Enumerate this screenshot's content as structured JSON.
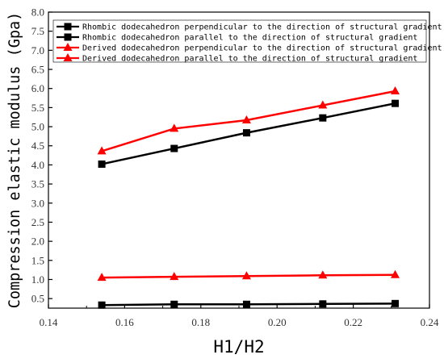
{
  "chart_data": {
    "type": "line",
    "xlabel": "H1/H2",
    "ylabel": "Compression elastic modulus (Gpa)",
    "xlim": [
      0.14,
      0.24
    ],
    "ylim": [
      0.25,
      8.0
    ],
    "x_ticks": [
      "0.14",
      "0.16",
      "0.18",
      "0.20",
      "0.22",
      "0.24"
    ],
    "y_ticks": [
      "0.5",
      "1.0",
      "1.5",
      "2.0",
      "2.5",
      "3.0",
      "3.5",
      "4.0",
      "4.5",
      "5.0",
      "5.5",
      "6.0",
      "6.5",
      "7.0",
      "7.5",
      "8.0"
    ],
    "grid": false,
    "legend_position": "top",
    "x": [
      0.154,
      0.173,
      0.192,
      0.212,
      0.231
    ],
    "series": [
      {
        "name": "Rhombic dodecahedron perpendicular to the direction of structural gradient",
        "color": "#000000",
        "marker": "square",
        "values": [
          4.02,
          4.43,
          4.84,
          5.23,
          5.61
        ]
      },
      {
        "name": "Rhombic dodecahedron parallel to the direction of structural gradient",
        "color": "#000000",
        "marker": "square",
        "values": [
          0.33,
          0.35,
          0.35,
          0.36,
          0.37
        ]
      },
      {
        "name": "Derived dodecahedron perpendicular to the direction of structural gradient",
        "color": "#ff0000",
        "marker": "triangle",
        "values": [
          4.36,
          4.95,
          5.17,
          5.56,
          5.93
        ]
      },
      {
        "name": "Derived dodecahedron parallel to the direction of structural gradient",
        "color": "#ff0000",
        "marker": "triangle",
        "values": [
          1.05,
          1.07,
          1.09,
          1.11,
          1.12
        ]
      }
    ]
  }
}
